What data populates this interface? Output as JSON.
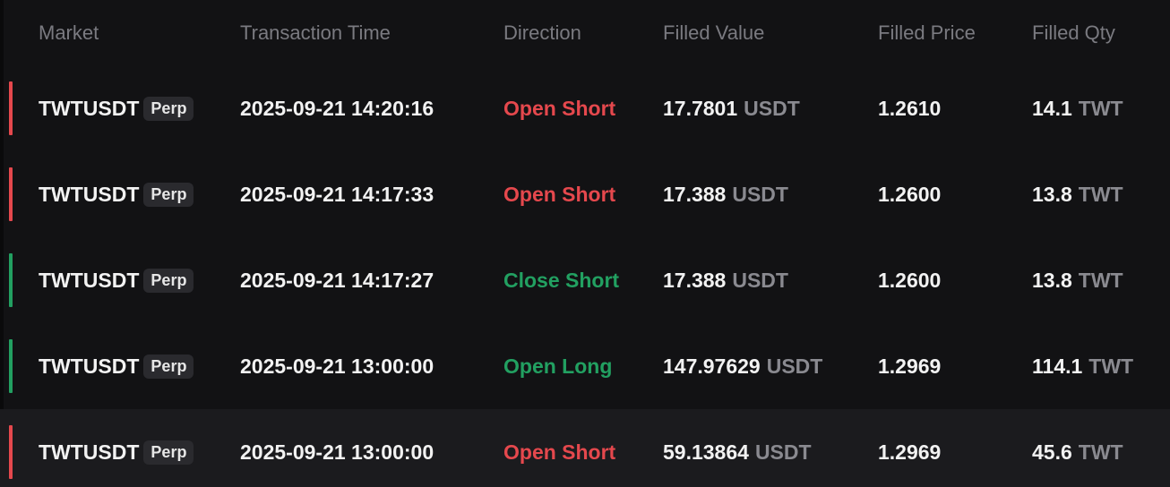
{
  "columns": {
    "market": "Market",
    "time": "Transaction Time",
    "direction": "Direction",
    "filled_value": "Filled Value",
    "filled_price": "Filled Price",
    "filled_qty": "Filled Qty"
  },
  "colors": {
    "open_short": "#e5484d",
    "close_short": "#22a061",
    "open_long": "#22a061"
  },
  "rows": [
    {
      "market": "TWTUSDT",
      "tag": "Perp",
      "time": "2025-09-21 14:20:16",
      "direction": "Open Short",
      "side": "red",
      "value": "17.7801",
      "value_unit": "USDT",
      "price": "1.2610",
      "qty": "14.1",
      "qty_unit": "TWT"
    },
    {
      "market": "TWTUSDT",
      "tag": "Perp",
      "time": "2025-09-21 14:17:33",
      "direction": "Open Short",
      "side": "red",
      "value": "17.388",
      "value_unit": "USDT",
      "price": "1.2600",
      "qty": "13.8",
      "qty_unit": "TWT"
    },
    {
      "market": "TWTUSDT",
      "tag": "Perp",
      "time": "2025-09-21 14:17:27",
      "direction": "Close Short",
      "side": "green",
      "value": "17.388",
      "value_unit": "USDT",
      "price": "1.2600",
      "qty": "13.8",
      "qty_unit": "TWT"
    },
    {
      "market": "TWTUSDT",
      "tag": "Perp",
      "time": "2025-09-21 13:00:00",
      "direction": "Open Long",
      "side": "green",
      "value": "147.97629",
      "value_unit": "USDT",
      "price": "1.2969",
      "qty": "114.1",
      "qty_unit": "TWT"
    },
    {
      "market": "TWTUSDT",
      "tag": "Perp",
      "time": "2025-09-21 13:00:00",
      "direction": "Open Short",
      "side": "red",
      "value": "59.13864",
      "value_unit": "USDT",
      "price": "1.2969",
      "qty": "45.6",
      "qty_unit": "TWT"
    }
  ]
}
